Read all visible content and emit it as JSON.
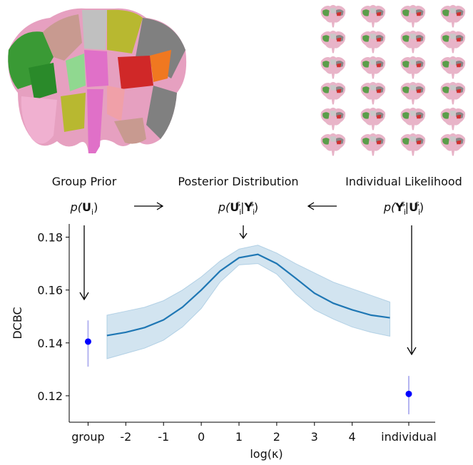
{
  "panels": [
    {
      "title": "Group Prior",
      "formula": [
        "p(",
        "U",
        "i",
        ")"
      ]
    },
    {
      "title": "Posterior Distribution",
      "formula": [
        "p(",
        "U",
        "i",
        "s",
        "|",
        "Y",
        "i",
        "s",
        ")"
      ]
    },
    {
      "title": "Individual Likelihood",
      "formula": [
        "p(",
        "Y",
        "i",
        "s",
        "|",
        "U",
        "i",
        "s",
        ")"
      ]
    }
  ],
  "chart_data": {
    "type": "line",
    "xlabel": "log(κ)",
    "ylabel": "DCBC",
    "xlim": [
      -3.5,
      6.2
    ],
    "ylim": [
      0.11,
      0.185
    ],
    "xticks": [
      {
        "value": -3,
        "label": "group"
      },
      -2,
      -1,
      0,
      1,
      2,
      3,
      4,
      {
        "value": 5.5,
        "label": "individual"
      }
    ],
    "yticks": [
      0.12,
      0.14,
      0.16,
      0.18
    ],
    "x": [
      -2.5,
      -2,
      -1.5,
      -1,
      -0.5,
      0,
      0.5,
      1,
      1.5,
      2,
      2.5,
      3,
      3.5,
      4,
      4.5,
      5
    ],
    "series": [
      {
        "color": "#1f77b4",
        "band_color": "#1f77b4",
        "values": [
          0.1428,
          0.144,
          0.1458,
          0.1487,
          0.1535,
          0.16,
          0.1672,
          0.1722,
          0.1735,
          0.17,
          0.1645,
          0.1588,
          0.155,
          0.1525,
          0.1505,
          0.1495
        ],
        "upper": [
          0.1505,
          0.152,
          0.1535,
          0.156,
          0.16,
          0.165,
          0.171,
          0.1755,
          0.177,
          0.174,
          0.17,
          0.1665,
          0.163,
          0.1605,
          0.158,
          0.1555
        ],
        "lower": [
          0.134,
          0.136,
          0.138,
          0.141,
          0.146,
          0.153,
          0.163,
          0.1695,
          0.17,
          0.166,
          0.1585,
          0.1525,
          0.149,
          0.146,
          0.144,
          0.1425
        ]
      }
    ],
    "points": [
      {
        "x": -3,
        "value": 0.1405,
        "lower": 0.131,
        "upper": 0.1485,
        "color": "#0000ff",
        "err_color": "#b4b4f0"
      },
      {
        "x": 5.5,
        "value": 0.1207,
        "lower": 0.113,
        "upper": 0.1275,
        "color": "#0000ff",
        "err_color": "#b4b4f0"
      }
    ]
  }
}
